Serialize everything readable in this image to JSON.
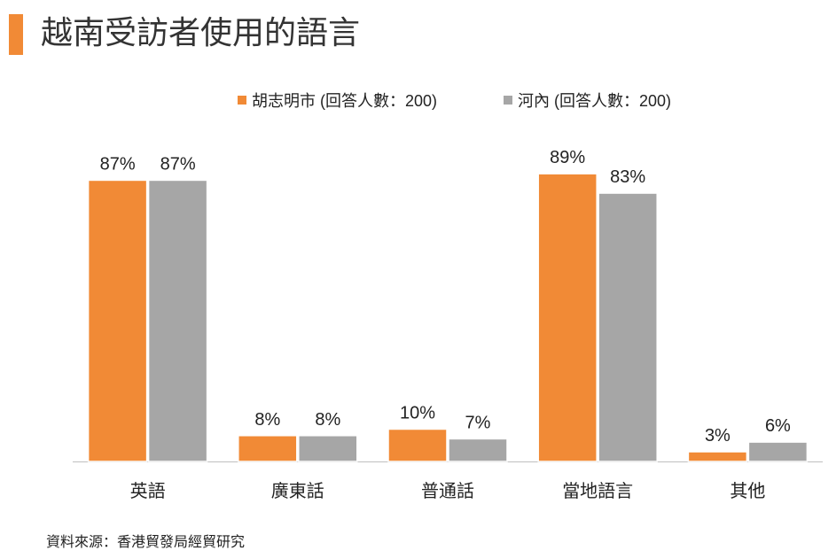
{
  "title": "越南受訪者使用的語言",
  "colors": {
    "accent": "#f18a36",
    "series1": "#f18a36",
    "series2": "#a6a6a6",
    "axis": "#bfbfbf"
  },
  "source": "資料來源：香港貿發局經貿研究",
  "chart_data": {
    "type": "bar",
    "title": "越南受訪者使用的語言",
    "categories": [
      "英語",
      "廣東話",
      "普通話",
      "當地語言",
      "其他"
    ],
    "series": [
      {
        "name": "胡志明市 (回答人數：200)",
        "values": [
          87,
          8,
          10,
          89,
          3
        ],
        "labels": [
          "87%",
          "8%",
          "10%",
          "89%",
          "3%"
        ]
      },
      {
        "name": "河內 (回答人數：200)",
        "values": [
          87,
          8,
          7,
          83,
          6
        ],
        "labels": [
          "87%",
          "8%",
          "7%",
          "83%",
          "6%"
        ]
      }
    ],
    "xlabel": "",
    "ylabel": "",
    "ylim": [
      0,
      100
    ],
    "legend": "top-center",
    "grid": false
  }
}
